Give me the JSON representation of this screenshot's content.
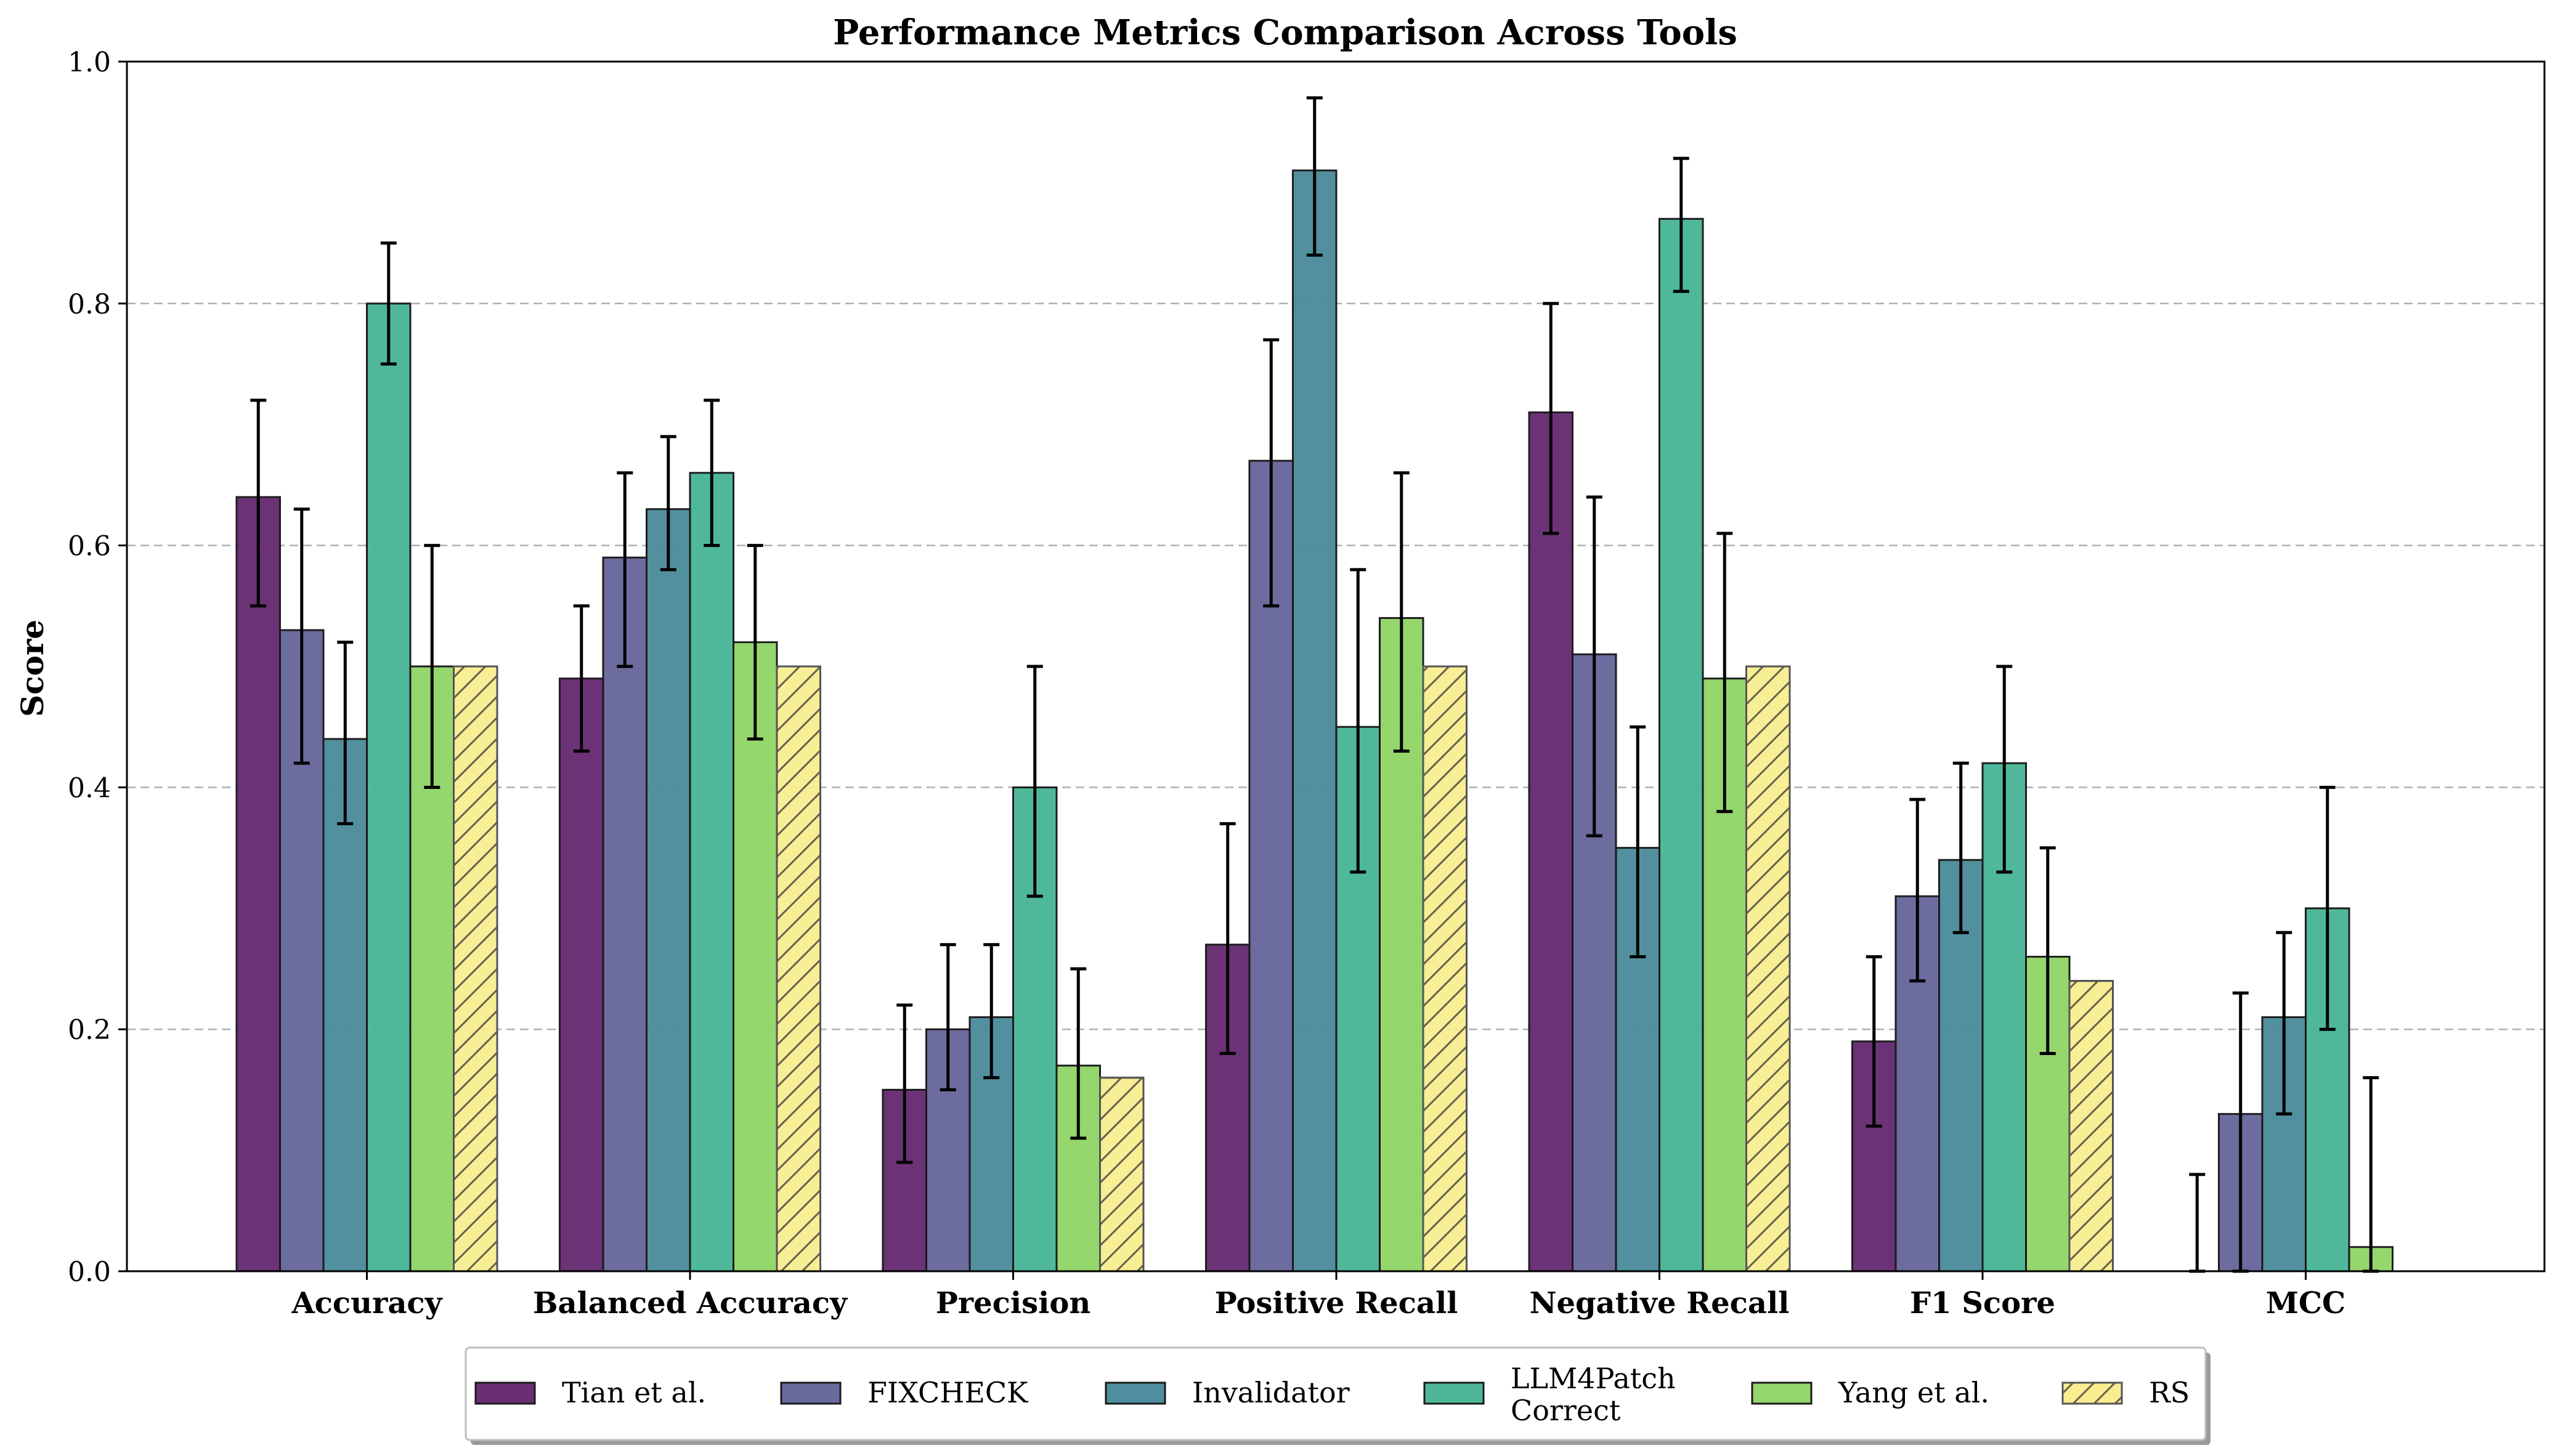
{
  "chart_data": {
    "type": "bar",
    "title": "Performance Metrics Comparison Across Tools",
    "xlabel": "",
    "ylabel": "Score",
    "ylim": [
      0,
      1.0
    ],
    "yticks": [
      "0.0",
      "0.2",
      "0.4",
      "0.6",
      "0.8",
      "1.0"
    ],
    "grid": "horizontal dashed",
    "legend_position": "bottom",
    "categories": [
      "Accuracy",
      "Balanced Accuracy",
      "Precision",
      "Positive Recall",
      "Negative Recall",
      "F1 Score",
      "MCC"
    ],
    "series": [
      {
        "name": "Tian et al.",
        "color": "#6a2e74",
        "hatch": false,
        "values": [
          0.64,
          0.49,
          0.15,
          0.27,
          0.71,
          0.19,
          0.0
        ],
        "error_low": [
          0.55,
          0.43,
          0.09,
          0.18,
          0.61,
          0.12,
          0.0
        ],
        "error_high": [
          0.72,
          0.55,
          0.22,
          0.37,
          0.8,
          0.26,
          0.08
        ]
      },
      {
        "name": "FIXCHECK",
        "color": "#6a6a9e",
        "hatch": false,
        "values": [
          0.53,
          0.59,
          0.2,
          0.67,
          0.51,
          0.31,
          0.13
        ],
        "error_low": [
          0.42,
          0.5,
          0.15,
          0.55,
          0.36,
          0.24,
          0.0
        ],
        "error_high": [
          0.63,
          0.66,
          0.27,
          0.77,
          0.64,
          0.39,
          0.23
        ]
      },
      {
        "name": "Invalidator",
        "color": "#4f8e9e",
        "hatch": false,
        "values": [
          0.44,
          0.63,
          0.21,
          0.91,
          0.35,
          0.34,
          0.21
        ],
        "error_low": [
          0.37,
          0.58,
          0.16,
          0.84,
          0.26,
          0.28,
          0.13
        ],
        "error_high": [
          0.52,
          0.69,
          0.27,
          0.97,
          0.45,
          0.42,
          0.28
        ]
      },
      {
        "name": "LLM4Patch Correct",
        "color": "#4db798",
        "hatch": false,
        "values": [
          0.8,
          0.66,
          0.4,
          0.45,
          0.87,
          0.42,
          0.3
        ],
        "error_low": [
          0.75,
          0.6,
          0.31,
          0.33,
          0.81,
          0.33,
          0.2
        ],
        "error_high": [
          0.85,
          0.72,
          0.5,
          0.58,
          0.92,
          0.5,
          0.4
        ]
      },
      {
        "name": "Yang et al.",
        "color": "#93d66b",
        "hatch": false,
        "values": [
          0.5,
          0.52,
          0.17,
          0.54,
          0.49,
          0.26,
          0.02
        ],
        "error_low": [
          0.4,
          0.44,
          0.11,
          0.43,
          0.38,
          0.18,
          0.0
        ],
        "error_high": [
          0.6,
          0.6,
          0.25,
          0.66,
          0.61,
          0.35,
          0.16
        ]
      },
      {
        "name": "RS",
        "color": "#f8ee90",
        "hatch": true,
        "values": [
          0.5,
          0.5,
          0.16,
          0.5,
          0.5,
          0.24,
          0.0
        ],
        "error_low": null,
        "error_high": null
      }
    ],
    "legend_labels": [
      [
        "Tian et al."
      ],
      [
        "FIXCHECK"
      ],
      [
        "Invalidator"
      ],
      [
        "LLM4Patch",
        "Correct"
      ],
      [
        "Yang et al."
      ],
      [
        "RS"
      ]
    ]
  }
}
